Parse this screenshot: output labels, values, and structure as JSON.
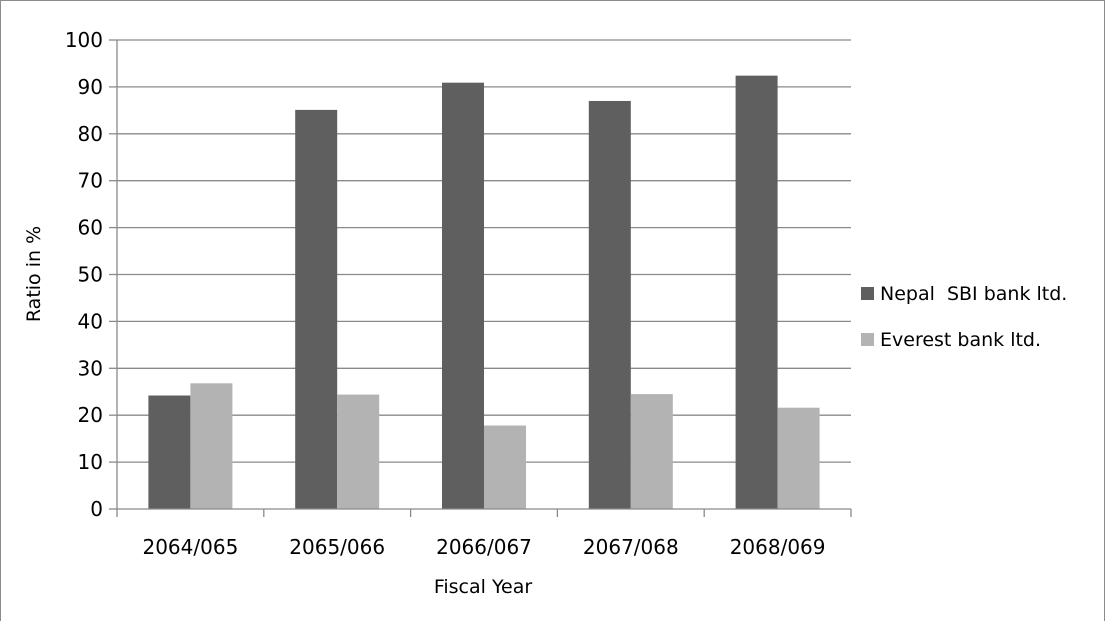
{
  "chart_data": {
    "type": "bar",
    "categories": [
      "2064/065",
      "2065/066",
      "2066/067",
      "2067/068",
      "2068/069"
    ],
    "series": [
      {
        "name": "Nepal  SBI bank ltd.",
        "color": "#5f5f5f",
        "values": [
          24.2,
          85.1,
          90.9,
          87.0,
          92.4
        ]
      },
      {
        "name": "Everest bank ltd.",
        "color": "#b3b3b3",
        "values": [
          26.8,
          24.4,
          17.8,
          24.5,
          21.6
        ]
      }
    ],
    "xlabel": "Fiscal Year",
    "ylabel": "Ratio in %",
    "ylim": [
      0,
      100
    ],
    "yticks": [
      0,
      10,
      20,
      30,
      40,
      50,
      60,
      70,
      80,
      90,
      100
    ],
    "grid": true,
    "legend": "right"
  }
}
